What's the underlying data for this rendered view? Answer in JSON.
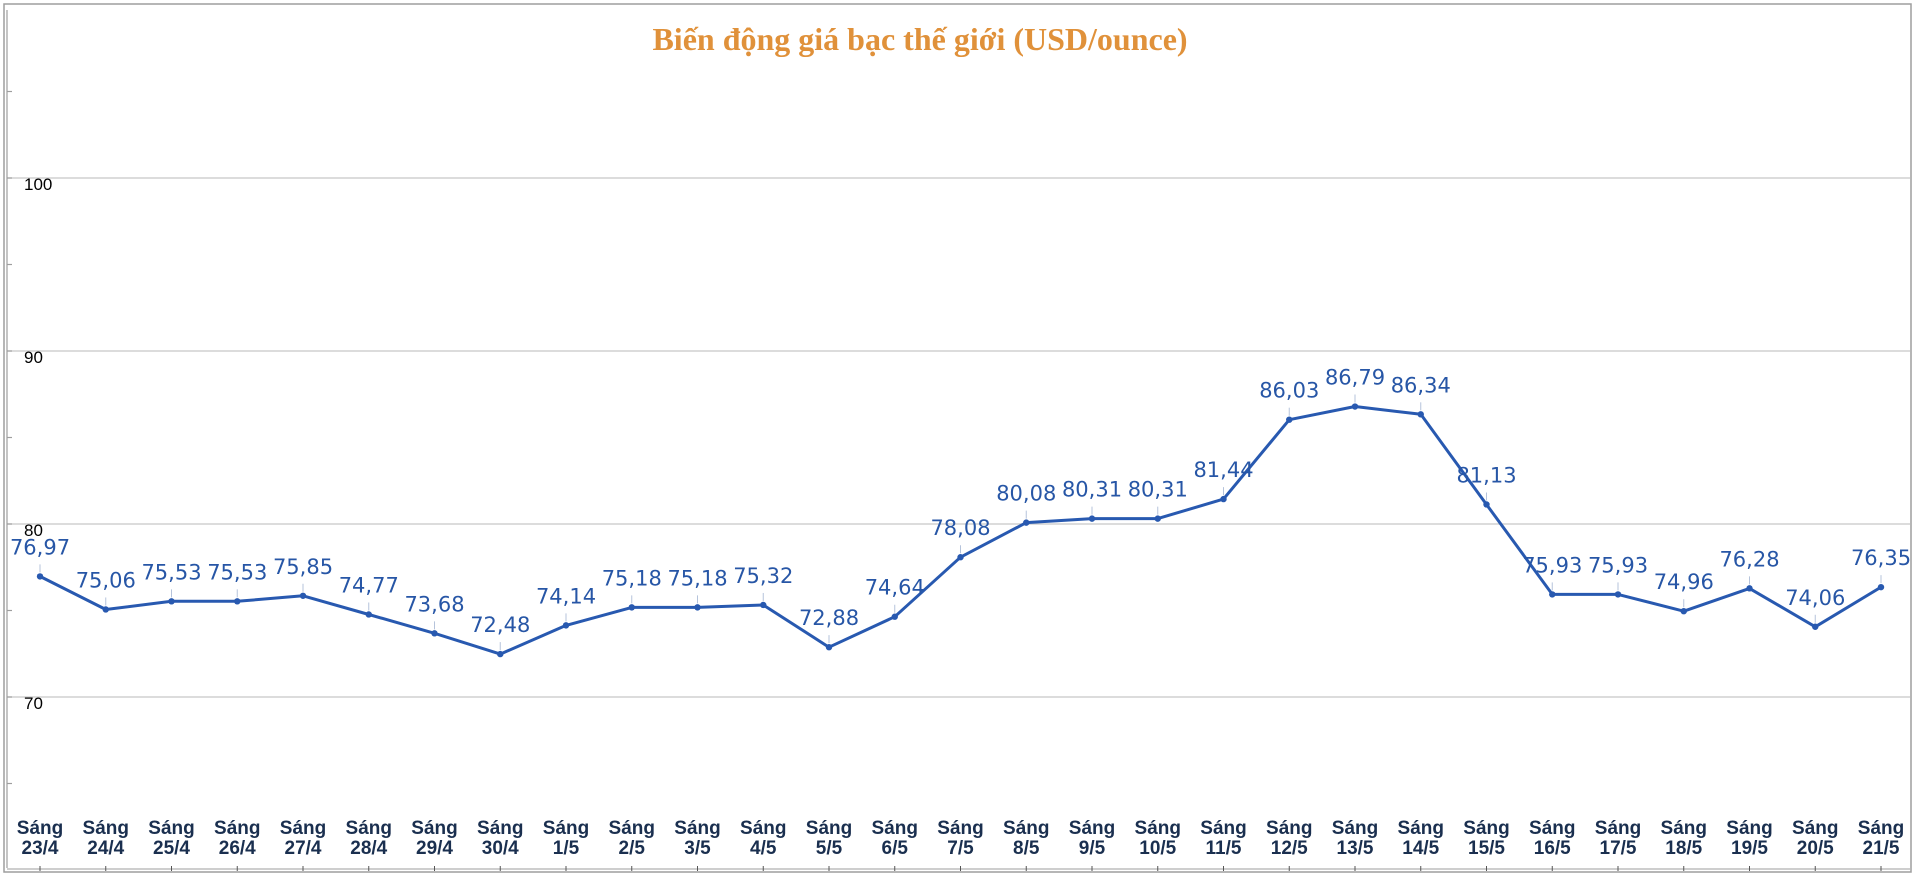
{
  "chart_data": {
    "type": "line",
    "title": "Biến động giá bạc thế giới (USD/ounce)",
    "xlabel": "",
    "ylabel": "",
    "ylim": [
      60,
      110
    ],
    "y_ticks": [
      {
        "value": 70,
        "label": "70"
      },
      {
        "value": 80,
        "label": "80"
      },
      {
        "value": 90,
        "label": "90"
      },
      {
        "value": 100,
        "label": "100"
      }
    ],
    "grid": true,
    "legend": "none",
    "line_color": "#2859B0",
    "title_color": "#E0913A",
    "label_color": "#2756A6",
    "categories": [
      {
        "line1": "Sáng",
        "line2": "23/4"
      },
      {
        "line1": "Sáng",
        "line2": "24/4"
      },
      {
        "line1": "Sáng",
        "line2": "25/4"
      },
      {
        "line1": "Sáng",
        "line2": "26/4"
      },
      {
        "line1": "Sáng",
        "line2": "27/4"
      },
      {
        "line1": "Sáng",
        "line2": "28/4"
      },
      {
        "line1": "Sáng",
        "line2": "29/4"
      },
      {
        "line1": "Sáng",
        "line2": "30/4"
      },
      {
        "line1": "Sáng",
        "line2": "1/5"
      },
      {
        "line1": "Sáng",
        "line2": "2/5"
      },
      {
        "line1": "Sáng",
        "line2": "3/5"
      },
      {
        "line1": "Sáng",
        "line2": "4/5"
      },
      {
        "line1": "Sáng",
        "line2": "5/5"
      },
      {
        "line1": "Sáng",
        "line2": "6/5"
      },
      {
        "line1": "Sáng",
        "line2": "7/5"
      },
      {
        "line1": "Sáng",
        "line2": "8/5"
      },
      {
        "line1": "Sáng",
        "line2": "9/5"
      },
      {
        "line1": "Sáng",
        "line2": "10/5"
      },
      {
        "line1": "Sáng",
        "line2": "11/5"
      },
      {
        "line1": "Sáng",
        "line2": "12/5"
      },
      {
        "line1": "Sáng",
        "line2": "13/5"
      },
      {
        "line1": "Sáng",
        "line2": "14/5"
      },
      {
        "line1": "Sáng",
        "line2": "15/5"
      },
      {
        "line1": "Sáng",
        "line2": "16/5"
      },
      {
        "line1": "Sáng",
        "line2": "17/5"
      },
      {
        "line1": "Sáng",
        "line2": "18/5"
      },
      {
        "line1": "Sáng",
        "line2": "19/5"
      },
      {
        "line1": "Sáng",
        "line2": "20/5"
      },
      {
        "line1": "Sáng",
        "line2": "21/5"
      }
    ],
    "values": [
      76.97,
      75.06,
      75.53,
      75.53,
      75.85,
      74.77,
      73.68,
      72.48,
      74.14,
      75.18,
      75.18,
      75.32,
      72.88,
      74.64,
      78.08,
      80.08,
      80.31,
      80.31,
      81.44,
      86.03,
      86.79,
      86.34,
      81.13,
      75.93,
      75.93,
      74.96,
      76.28,
      74.06,
      76.35
    ],
    "data_labels": [
      "76,97",
      "75,06",
      "75,53",
      "75,53",
      "75,85",
      "74,77",
      "73,68",
      "72,48",
      "74,14",
      "75,18",
      "75,18",
      "75,32",
      "72,88",
      "74,64",
      "78,08",
      "80,08",
      "80,31",
      "80,31",
      "81,44",
      "86,03",
      "86,79",
      "86,34",
      "81,13",
      "75,93",
      "75,93",
      "74,96",
      "76,28",
      "74,06",
      "76,35"
    ]
  }
}
